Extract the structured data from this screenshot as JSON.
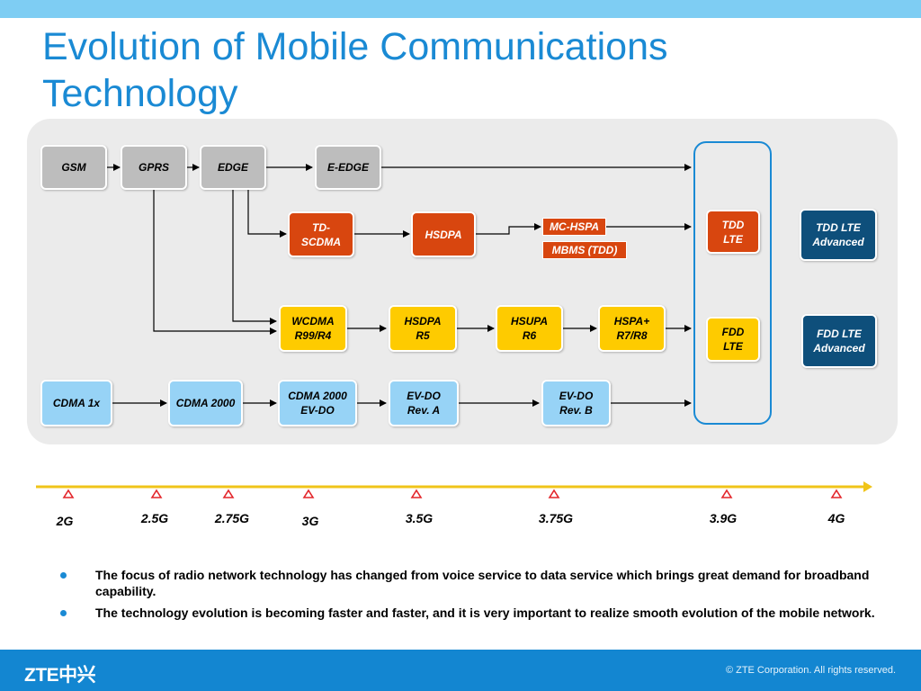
{
  "title": "Evolution of Mobile Communications Technology",
  "nodes": {
    "gsm": "GSM",
    "gprs": "GPRS",
    "edge": "EDGE",
    "eedge": "E-EDGE",
    "tdscdma_1": "TD-",
    "tdscdma_2": "SCDMA",
    "hsdpa": "HSDPA",
    "mchspa": "MC-HSPA",
    "mbms": "MBMS (TDD)",
    "tddlte_1": "TDD",
    "tddlte_2": "LTE",
    "tddlteadv_1": "TDD LTE",
    "tddlteadv_2": "Advanced",
    "wcdma_1": "WCDMA",
    "wcdma_2": "R99/R4",
    "hsdpar5_1": "HSDPA",
    "hsdpar5_2": "R5",
    "hsupa_1": "HSUPA",
    "hsupa_2": "R6",
    "hspaplus_1": "HSPA+",
    "hspaplus_2": "R7/R8",
    "fddlte_1": "FDD",
    "fddlte_2": "LTE",
    "fddlteadv_1": "FDD LTE",
    "fddlteadv_2": "Advanced",
    "cdma1x": "CDMA 1x",
    "cdma2000": "CDMA 2000",
    "cdma2000evdo_1": "CDMA 2000",
    "cdma2000evdo_2": "EV-DO",
    "evdoa_1": "EV-DO",
    "evdoa_2": "Rev. A",
    "evdob_1": "EV-DO",
    "evdob_2": "Rev. B"
  },
  "generations": [
    "2G",
    "2.5G",
    "2.75G",
    "3G",
    "3.5G",
    "3.75G",
    "3.9G",
    "4G"
  ],
  "bullets": [
    "The focus of radio network technology has changed from voice service to data service which brings great demand for broadband capability.",
    "The technology evolution is becoming faster and faster, and it is very important to realize smooth evolution of the mobile network."
  ],
  "footer": {
    "logo": "ZTE中兴",
    "copyright": "© ZTE Corporation. All rights reserved."
  },
  "colors": {
    "accent": "#1a8ad4",
    "gsm_family": "#bdbdbd",
    "td_family": "#d8460f",
    "wcdma_family": "#fecb00",
    "cdma_family": "#97d3f6",
    "advanced": "#0e4f7b",
    "timeline": "#f0c419"
  }
}
